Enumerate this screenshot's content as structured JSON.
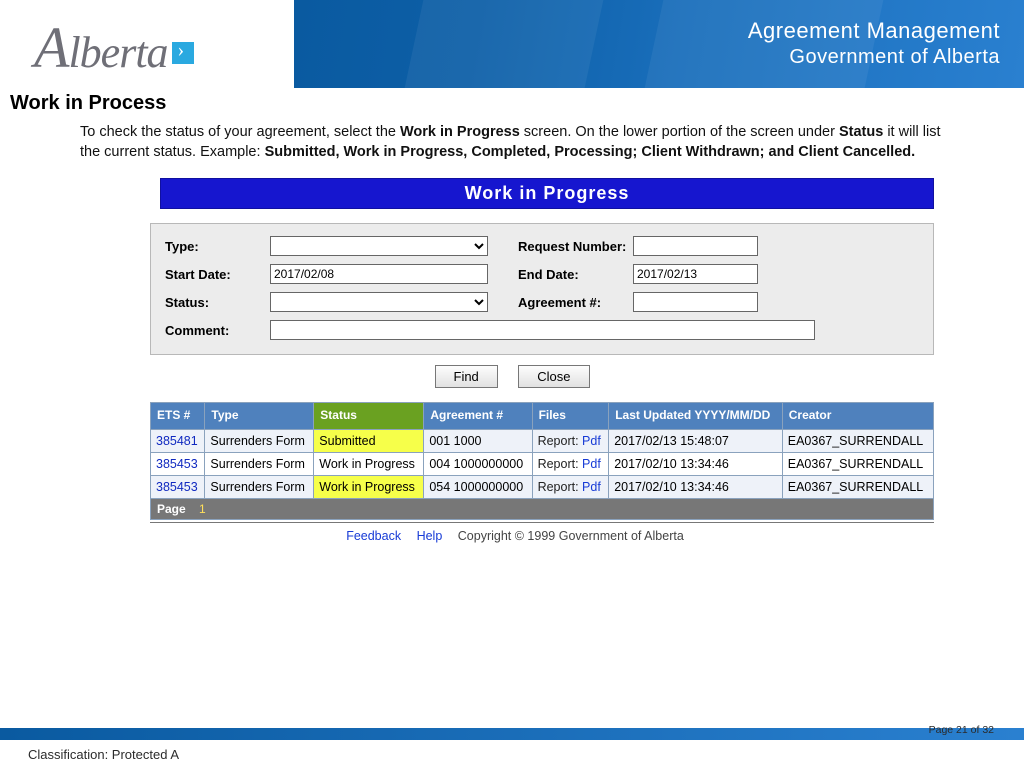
{
  "banner": {
    "title1": "Agreement Management",
    "title2": "Government of Alberta",
    "logo_text": "Alberta"
  },
  "section": {
    "title": "Work in Process"
  },
  "intro": {
    "pre": "To check the status of your agreement, select the ",
    "b1": "Work in Progress",
    "mid1": " screen.  On the lower portion of the screen under ",
    "b2": "Status",
    "mid2": " it will list the current status.  Example: ",
    "b3": "Submitted, Work in Progress, Completed, Processing; Client Withdrawn; and Client Cancelled."
  },
  "wip_bar": "Work in Progress",
  "form": {
    "labels": {
      "type": "Type:",
      "reqnum": "Request Number:",
      "start": "Start Date:",
      "end": "End Date:",
      "status": "Status:",
      "agnum": "Agreement #:",
      "comment": "Comment:"
    },
    "start_date": "2017/02/08",
    "end_date": "2017/02/13",
    "find": "Find",
    "close": "Close"
  },
  "table": {
    "headers": {
      "ets": "ETS #",
      "type": "Type",
      "status": "Status",
      "agreement": "Agreement #",
      "files": "Files",
      "updated": "Last Updated YYYY/MM/DD",
      "creator": "Creator"
    },
    "rows": [
      {
        "ets": "385481",
        "type": "Surrenders Form",
        "status": "Submitted",
        "agreement": "001 1000",
        "file_label": "Report:",
        "file_link": "Pdf",
        "updated": "2017/02/13 15:48:07",
        "creator": "EA0367_SURRENDALL"
      },
      {
        "ets": "385453",
        "type": "Surrenders Form",
        "status": "Work in Progress",
        "agreement": "004 1000000000",
        "file_label": "Report:",
        "file_link": "Pdf",
        "updated": "2017/02/10 13:34:46",
        "creator": "EA0367_SURRENDALL"
      },
      {
        "ets": "385453",
        "type": "Surrenders Form",
        "status": "Work in Progress",
        "agreement": "054 1000000000",
        "file_label": "Report:",
        "file_link": "Pdf",
        "updated": "2017/02/10 13:34:46",
        "creator": "EA0367_SURRENDALL"
      }
    ],
    "page_label": "Page",
    "page_num": "1"
  },
  "footer": {
    "feedback": "Feedback",
    "help": "Help",
    "copyright": "Copyright © 1999 Government of Alberta"
  },
  "bottom": {
    "classification": "Classification: Protected A",
    "page": "Page 21 of 32"
  }
}
